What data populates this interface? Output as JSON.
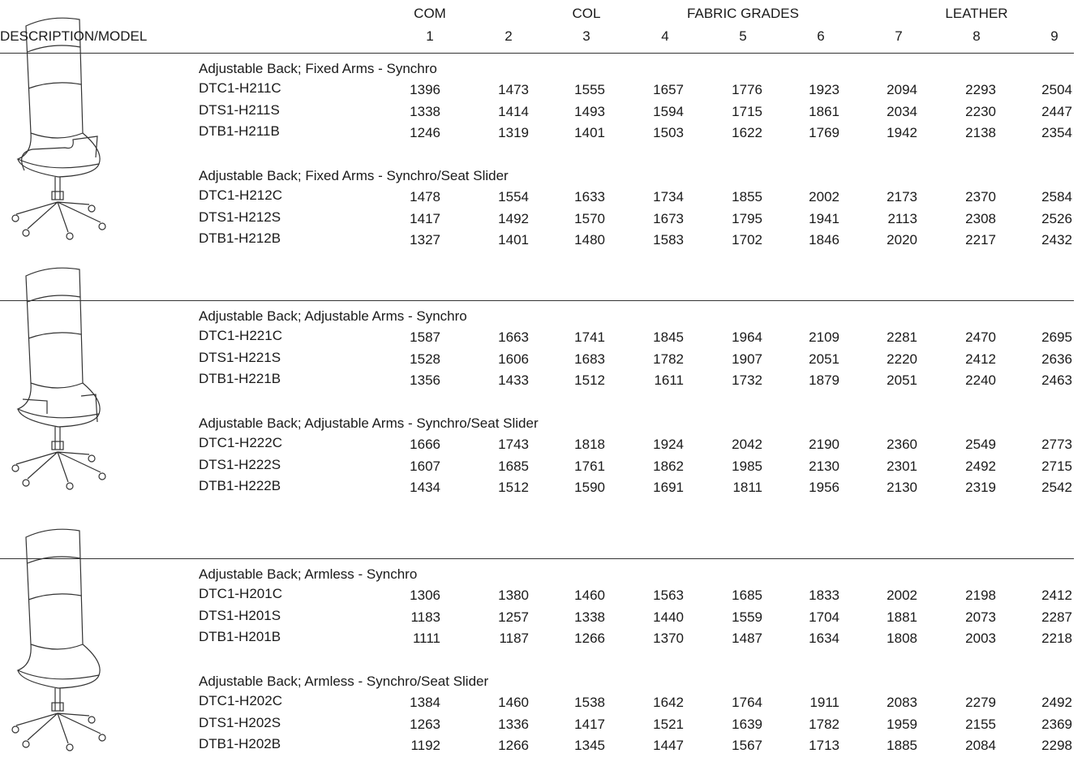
{
  "header": {
    "description_label": "DESCRIPTION/MODEL",
    "groups": [
      {
        "label": "COM"
      },
      {
        "label": "COL"
      },
      {
        "label": "FABRIC GRADES"
      },
      {
        "label": "LEATHER"
      }
    ],
    "columns": [
      1,
      2,
      3,
      4,
      5,
      6,
      7,
      8,
      9
    ]
  },
  "sections": [
    {
      "groups": [
        {
          "title": "Adjustable Back; Fixed Arms - Synchro",
          "rows": [
            {
              "model": "DTC1-H211C",
              "prices": [
                1396,
                1473,
                1555,
                1657,
                1776,
                1923,
                2094,
                2293,
                2504
              ]
            },
            {
              "model": "DTS1-H211S",
              "prices": [
                1338,
                1414,
                1493,
                1594,
                1715,
                1861,
                2034,
                2230,
                2447
              ]
            },
            {
              "model": "DTB1-H211B",
              "prices": [
                1246,
                1319,
                1401,
                1503,
                1622,
                1769,
                1942,
                2138,
                2354
              ]
            }
          ]
        },
        {
          "title": "Adjustable Back; Fixed Arms - Synchro/Seat Slider",
          "rows": [
            {
              "model": "DTC1-H212C",
              "prices": [
                1478,
                1554,
                1633,
                1734,
                1855,
                2002,
                2173,
                2370,
                2584
              ]
            },
            {
              "model": "DTS1-H212S",
              "prices": [
                1417,
                1492,
                1570,
                1673,
                1795,
                1941,
                2113,
                2308,
                2526
              ]
            },
            {
              "model": "DTB1-H212B",
              "prices": [
                1327,
                1401,
                1480,
                1583,
                1702,
                1846,
                2020,
                2217,
                2432
              ]
            }
          ]
        }
      ]
    },
    {
      "groups": [
        {
          "title": "Adjustable Back; Adjustable Arms - Synchro",
          "rows": [
            {
              "model": "DTC1-H221C",
              "prices": [
                1587,
                1663,
                1741,
                1845,
                1964,
                2109,
                2281,
                2470,
                2695
              ]
            },
            {
              "model": "DTS1-H221S",
              "prices": [
                1528,
                1606,
                1683,
                1782,
                1907,
                2051,
                2220,
                2412,
                2636
              ]
            },
            {
              "model": "DTB1-H221B",
              "prices": [
                1356,
                1433,
                1512,
                1611,
                1732,
                1879,
                2051,
                2240,
                2463
              ]
            }
          ]
        },
        {
          "title": "Adjustable Back; Adjustable Arms - Synchro/Seat Slider",
          "rows": [
            {
              "model": "DTC1-H222C",
              "prices": [
                1666,
                1743,
                1818,
                1924,
                2042,
                2190,
                2360,
                2549,
                2773
              ]
            },
            {
              "model": "DTS1-H222S",
              "prices": [
                1607,
                1685,
                1761,
                1862,
                1985,
                2130,
                2301,
                2492,
                2715
              ]
            },
            {
              "model": "DTB1-H222B",
              "prices": [
                1434,
                1512,
                1590,
                1691,
                1811,
                1956,
                2130,
                2319,
                2542
              ]
            }
          ]
        }
      ]
    },
    {
      "groups": [
        {
          "title": "Adjustable Back; Armless - Synchro",
          "rows": [
            {
              "model": "DTC1-H201C",
              "prices": [
                1306,
                1380,
                1460,
                1563,
                1685,
                1833,
                2002,
                2198,
                2412
              ]
            },
            {
              "model": "DTS1-H201S",
              "prices": [
                1183,
                1257,
                1338,
                1440,
                1559,
                1704,
                1881,
                2073,
                2287
              ]
            },
            {
              "model": "DTB1-H201B",
              "prices": [
                1111,
                1187,
                1266,
                1370,
                1487,
                1634,
                1808,
                2003,
                2218
              ]
            }
          ]
        },
        {
          "title": "Adjustable Back; Armless - Synchro/Seat Slider",
          "rows": [
            {
              "model": "DTC1-H202C",
              "prices": [
                1384,
                1460,
                1538,
                1642,
                1764,
                1911,
                2083,
                2279,
                2492
              ]
            },
            {
              "model": "DTS1-H202S",
              "prices": [
                1263,
                1336,
                1417,
                1521,
                1639,
                1782,
                1959,
                2155,
                2369
              ]
            },
            {
              "model": "DTB1-H202B",
              "prices": [
                1192,
                1266,
                1345,
                1447,
                1567,
                1713,
                1885,
                2084,
                2298
              ]
            }
          ]
        }
      ]
    }
  ]
}
